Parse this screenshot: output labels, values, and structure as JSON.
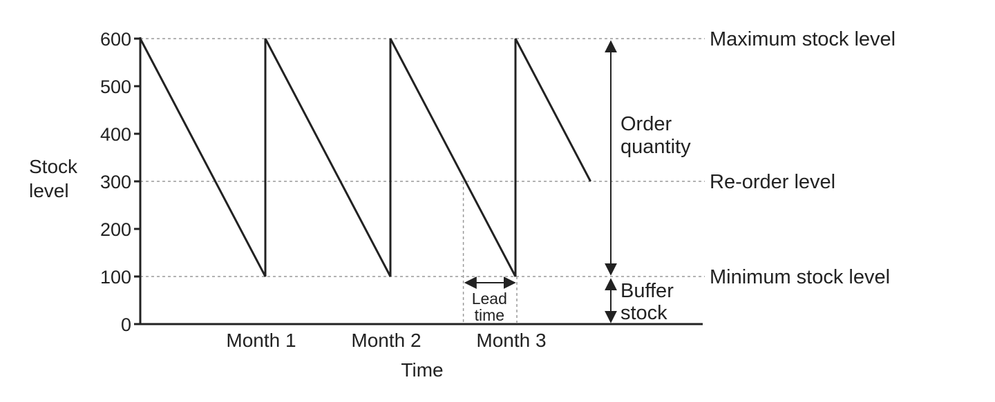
{
  "chart_data": {
    "type": "line",
    "title": "",
    "ylabel": [
      "Stock",
      "level"
    ],
    "xlabel": "Time",
    "ylim": [
      0,
      600
    ],
    "xlim": [
      0,
      5
    ],
    "yticks": [
      0,
      100,
      200,
      300,
      400,
      500,
      600
    ],
    "categories": [
      "Month 1",
      "Month 2",
      "Month 3"
    ],
    "category_positions": [
      1,
      2,
      3
    ],
    "series": [
      {
        "x": [
          0,
          1,
          1,
          2,
          2,
          3,
          3,
          3.6
        ],
        "y": [
          600,
          100,
          600,
          100,
          600,
          100,
          600,
          300
        ]
      }
    ],
    "reference_lines": [
      {
        "y": 600,
        "label": "Maximum stock level"
      },
      {
        "y": 300,
        "label": "Re-order level"
      },
      {
        "y": 100,
        "label": "Minimum stock level"
      }
    ],
    "annotations": {
      "order_quantity": {
        "lines": [
          "Order",
          "quantity"
        ],
        "from": 100,
        "to": 600
      },
      "buffer_stock": {
        "lines": [
          "Buffer",
          "stock"
        ],
        "from": 0,
        "to": 100
      },
      "lead_time": {
        "lines": [
          "Lead",
          "time"
        ],
        "x_from": 2.6,
        "x_to": 3
      }
    },
    "grid": false,
    "line_color": "#222222",
    "guide_color": "#999999"
  }
}
